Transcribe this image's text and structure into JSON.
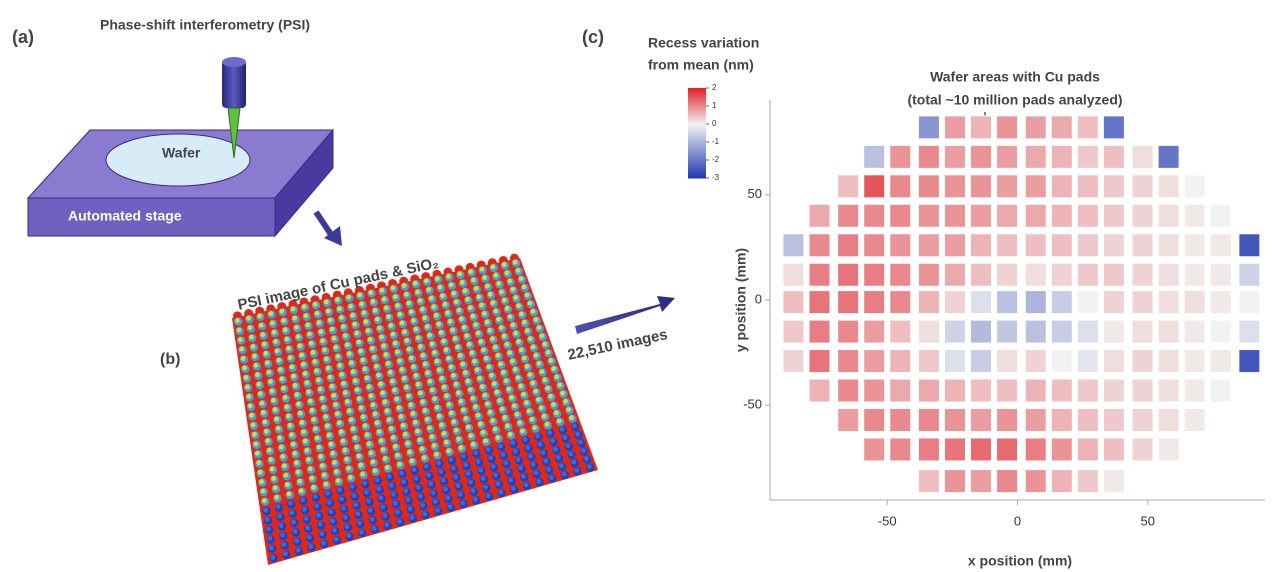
{
  "panels": {
    "a": {
      "label": "(a)",
      "title": "Phase-shift interferometry (PSI)",
      "wafer": "Wafer",
      "stage": "Automated stage"
    },
    "b": {
      "label": "(b)",
      "image_caption": "PSI image of Cu pads & SiO₂",
      "count": "22,510 images"
    },
    "c": {
      "label": "(c)"
    }
  },
  "chart_data": {
    "type": "heatmap",
    "colorbar_title": [
      "Recess variation",
      "from mean (nm)"
    ],
    "annotation": [
      "Wafer areas with Cu pads",
      "(total ~10 million pads analyzed)"
    ],
    "x_label": "x position (mm)",
    "y_label": "y position (mm)",
    "xlim": [
      -95,
      95
    ],
    "ylim": [
      -95,
      95
    ],
    "xticks": [
      -50,
      0,
      50
    ],
    "yticks": [
      50,
      0,
      -50
    ],
    "clim": [
      -3,
      2
    ],
    "cticks": [
      2,
      1,
      0,
      -1,
      -2,
      -3
    ],
    "colors": {
      "high": "#e0202a",
      "mid": "#f2f2f2",
      "low": "#2038b0"
    },
    "x": [
      -86,
      -76,
      -65,
      -55,
      -45,
      -34,
      -24,
      -14,
      -4,
      7,
      17,
      27,
      37,
      48,
      58,
      68,
      78,
      89
    ],
    "y": [
      82,
      68,
      54,
      40,
      26,
      12,
      -1,
      -15,
      -29,
      -43,
      -57,
      -71,
      -86
    ],
    "values": [
      [
        null,
        null,
        null,
        null,
        null,
        -1.5,
        0.8,
        0.6,
        0.9,
        0.8,
        0.7,
        0.5,
        -2,
        null,
        null,
        null,
        null,
        null
      ],
      [
        null,
        null,
        null,
        -0.8,
        0.9,
        1,
        0.8,
        0.9,
        0.8,
        0.7,
        0.6,
        0.4,
        0.5,
        0.2,
        -2,
        null,
        null,
        null
      ],
      [
        null,
        null,
        0.5,
        1.5,
        1,
        1,
        0.9,
        0.9,
        0.8,
        0.8,
        0.6,
        0.5,
        0.4,
        0.3,
        0.2,
        0,
        null,
        null
      ],
      [
        null,
        0.7,
        1,
        1,
        1,
        0.9,
        0.9,
        0.8,
        0.7,
        0.7,
        0.6,
        0.5,
        0.4,
        0.3,
        0.2,
        0.1,
        0,
        null
      ],
      [
        -0.8,
        1,
        1.1,
        1,
        0.9,
        0.8,
        0.8,
        0.6,
        0.5,
        0.5,
        0.5,
        0.4,
        0.3,
        0.3,
        0.2,
        0.1,
        0.1,
        -2.5
      ],
      [
        0.2,
        1.1,
        1.2,
        1.1,
        1,
        0.9,
        0.7,
        0.5,
        0.3,
        0.2,
        0.3,
        0.4,
        0.4,
        0.3,
        0.2,
        0.1,
        0.1,
        -0.5
      ],
      [
        0.5,
        1.2,
        1.2,
        1.1,
        1,
        0.6,
        0.3,
        -0.3,
        -0.8,
        -1,
        -0.6,
        0,
        0.3,
        0.3,
        0.2,
        0.2,
        0.1,
        0
      ],
      [
        0.4,
        1.1,
        1,
        0.8,
        0.5,
        0.2,
        -0.5,
        -0.9,
        -0.7,
        -0.8,
        -0.6,
        -0.3,
        0.1,
        0.2,
        0.2,
        0.1,
        0,
        -0.3
      ],
      [
        0.3,
        1.2,
        1,
        0.8,
        0.6,
        0.4,
        -0.3,
        -0.6,
        0.2,
        0.3,
        0,
        -0.2,
        0.2,
        0.3,
        0.2,
        0.1,
        0.1,
        -2.5
      ],
      [
        null,
        0.6,
        1,
        0.9,
        0.7,
        0.7,
        0.6,
        0.5,
        0.5,
        0.6,
        0.5,
        0.4,
        0.3,
        0.3,
        0.2,
        0.1,
        0,
        null
      ],
      [
        null,
        null,
        0.8,
        1,
        1,
        1,
        0.9,
        0.8,
        0.9,
        0.8,
        0.6,
        0.5,
        0.4,
        0.3,
        0.2,
        0.1,
        null,
        null
      ],
      [
        null,
        null,
        null,
        0.9,
        1,
        1.1,
        1.2,
        1.3,
        1.3,
        1.1,
        0.9,
        0.6,
        0.5,
        0.3,
        0.1,
        null,
        null,
        null
      ],
      [
        null,
        null,
        null,
        null,
        null,
        0.5,
        0.9,
        0.8,
        1,
        0.9,
        0.6,
        0.4,
        0.1,
        null,
        null,
        null,
        null,
        null
      ]
    ]
  }
}
